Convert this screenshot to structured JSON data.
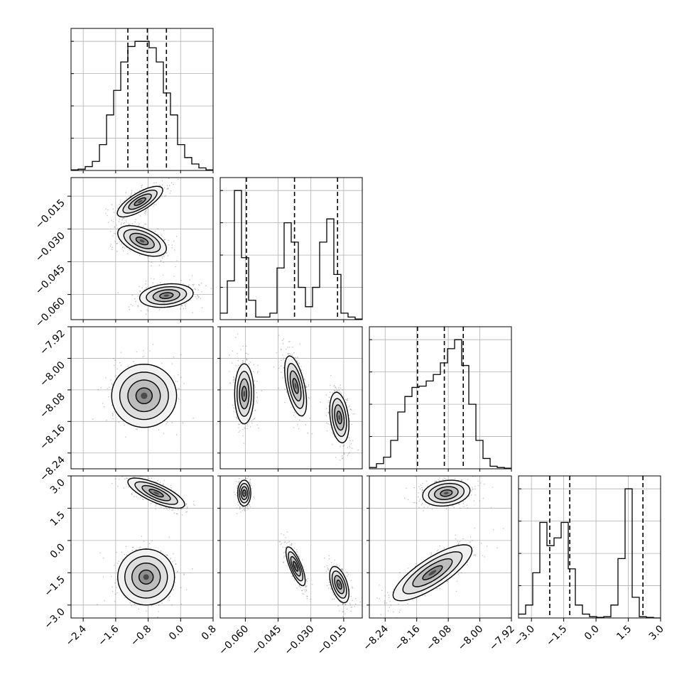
{
  "chart_data": {
    "type": "corner",
    "title": "",
    "grid": true,
    "legend": "none",
    "quantile_line_style": "dashed",
    "parameters": [
      {
        "ticks": [
          -2.4,
          -1.6,
          -0.8,
          0.0,
          0.8
        ],
        "tick_labels": [
          "−2.4",
          "−1.6",
          "−0.8",
          "0.0",
          "0.8"
        ],
        "range": [
          -2.7,
          0.8
        ]
      },
      {
        "ticks": [
          -0.06,
          -0.045,
          -0.03,
          -0.015
        ],
        "tick_labels": [
          "−0.060",
          "−0.045",
          "−0.030",
          "−0.015"
        ],
        "range": [
          -0.0715,
          -0.0065
        ]
      },
      {
        "ticks": [
          -8.24,
          -8.16,
          -8.08,
          -8.0,
          -7.92
        ],
        "tick_labels": [
          "−8.24",
          "−8.16",
          "−8.08",
          "−8.00",
          "−7.92"
        ],
        "range": [
          -8.28,
          -7.92
        ]
      },
      {
        "ticks": [
          -3.0,
          -1.5,
          0.0,
          1.5,
          3.0
        ],
        "tick_labels": [
          "−3.0",
          "−1.5",
          "0.0",
          "1.5",
          "3.0"
        ],
        "range": [
          -3.6,
          3.0
        ]
      }
    ],
    "histograms": [
      {
        "param": 0,
        "bins": [
          -2.7,
          -2.525,
          -2.35,
          -2.175,
          -2.0,
          -1.825,
          -1.65,
          -1.475,
          -1.3,
          -1.125,
          -0.95,
          -0.775,
          -0.6,
          -0.425,
          -0.25,
          -0.075,
          0.1,
          0.275,
          0.45,
          0.625,
          0.8
        ],
        "counts": [
          0.005,
          0.01,
          0.03,
          0.07,
          0.2,
          0.43,
          0.62,
          0.84,
          0.96,
          1.0,
          1.0,
          0.95,
          0.84,
          0.6,
          0.43,
          0.2,
          0.1,
          0.05,
          0.02,
          0.005
        ],
        "quantiles": [
          -1.3,
          -0.82,
          -0.35
        ]
      },
      {
        "param": 1,
        "bins": [
          -0.0715,
          -0.06825,
          -0.065,
          -0.06175,
          -0.0585,
          -0.05525,
          -0.052,
          -0.04875,
          -0.0455,
          -0.04225,
          -0.039,
          -0.03575,
          -0.0325,
          -0.02925,
          -0.026,
          -0.02275,
          -0.0195,
          -0.01625,
          -0.013,
          -0.00975,
          -0.0065
        ],
        "counts": [
          0.05,
          0.3,
          1.0,
          0.48,
          0.15,
          0.02,
          0.02,
          0.05,
          0.4,
          0.75,
          0.6,
          0.25,
          0.1,
          0.25,
          0.6,
          0.78,
          0.35,
          0.05,
          0.02,
          0.005
        ],
        "quantiles": [
          -0.0595,
          -0.0375,
          -0.0178
        ]
      },
      {
        "param": 2,
        "bins": [
          -8.28,
          -8.262,
          -8.244,
          -8.226,
          -8.208,
          -8.19,
          -8.172,
          -8.154,
          -8.136,
          -8.118,
          -8.1,
          -8.082,
          -8.064,
          -8.046,
          -8.028,
          -8.01,
          -7.992,
          -7.974,
          -7.956,
          -7.938,
          -7.92
        ],
        "counts": [
          0.01,
          0.04,
          0.09,
          0.22,
          0.44,
          0.56,
          0.63,
          0.64,
          0.68,
          0.73,
          0.82,
          0.93,
          1.0,
          0.8,
          0.5,
          0.22,
          0.08,
          0.02,
          0.01,
          0.005
        ],
        "quantiles": [
          -8.158,
          -8.09,
          -8.042
        ]
      },
      {
        "param": 3,
        "bins": [
          -3.6,
          -3.27,
          -2.94,
          -2.61,
          -2.28,
          -1.95,
          -1.62,
          -1.29,
          -0.96,
          -0.63,
          -0.3,
          0.03,
          0.36,
          0.69,
          1.02,
          1.35,
          1.68,
          2.01,
          2.34,
          2.67,
          3.0
        ],
        "counts": [
          0.03,
          0.1,
          0.35,
          0.74,
          0.56,
          0.62,
          0.74,
          0.38,
          0.1,
          0.03,
          0.01,
          0.005,
          0.01,
          0.1,
          0.46,
          1.0,
          0.16,
          0.01,
          0.005,
          0.0
        ],
        "quantiles": [
          -2.15,
          -1.22,
          2.18
        ]
      }
    ],
    "modes_2d": [
      {
        "x_param": 1,
        "y_param": 0,
        "modes": [
          {
            "center": [
              -1.0,
              -0.0175
            ],
            "spread": [
              0.28,
              0.0035
            ],
            "rho": 0.75
          },
          {
            "center": [
              -0.95,
              -0.0355
            ],
            "spread": [
              0.3,
              0.0035
            ],
            "rho": -0.5
          },
          {
            "center": [
              -0.35,
              -0.0605
            ],
            "spread": [
              0.33,
              0.0027
            ],
            "rho": 0.2
          }
        ]
      },
      {
        "x_param": 2,
        "y_param": 0,
        "modes": [
          {
            "center": [
              -0.9,
              -8.095
            ],
            "spread": [
              0.4,
              0.04
            ],
            "rho": 0.0
          }
        ]
      },
      {
        "x_param": 2,
        "y_param": 1,
        "modes": [
          {
            "center": [
              -0.0605,
              -8.09
            ],
            "spread": [
              0.0022,
              0.038
            ],
            "rho": 0.0
          },
          {
            "center": [
              -0.037,
              -8.07
            ],
            "spread": [
              0.0025,
              0.038
            ],
            "rho": -0.55
          },
          {
            "center": [
              -0.017,
              -8.15
            ],
            "spread": [
              0.0022,
              0.032
            ],
            "rho": -0.3
          }
        ]
      },
      {
        "x_param": 3,
        "y_param": 0,
        "modes": [
          {
            "center": [
              -0.6,
              2.2
            ],
            "spread": [
              0.35,
              0.35
            ],
            "rho": -0.75
          },
          {
            "center": [
              -0.85,
              -1.7
            ],
            "spread": [
              0.35,
              0.65
            ],
            "rho": 0.0
          }
        ]
      },
      {
        "x_param": 3,
        "y_param": 1,
        "modes": [
          {
            "center": [
              -0.0605,
              2.2
            ],
            "spread": [
              0.0015,
              0.3
            ],
            "rho": 0.0
          },
          {
            "center": [
              -0.037,
              -1.2
            ],
            "spread": [
              0.0022,
              0.45
            ],
            "rho": -0.75
          },
          {
            "center": [
              -0.017,
              -2.05
            ],
            "spread": [
              0.0022,
              0.42
            ],
            "rho": -0.5
          }
        ]
      },
      {
        "x_param": 3,
        "y_param": 2,
        "modes": [
          {
            "center": [
              -8.085,
              2.2
            ],
            "spread": [
              0.03,
              0.3
            ],
            "rho": 0.2
          },
          {
            "center": [
              -8.12,
              -1.5
            ],
            "spread": [
              0.05,
              0.65
            ],
            "rho": 0.8
          }
        ]
      }
    ]
  }
}
